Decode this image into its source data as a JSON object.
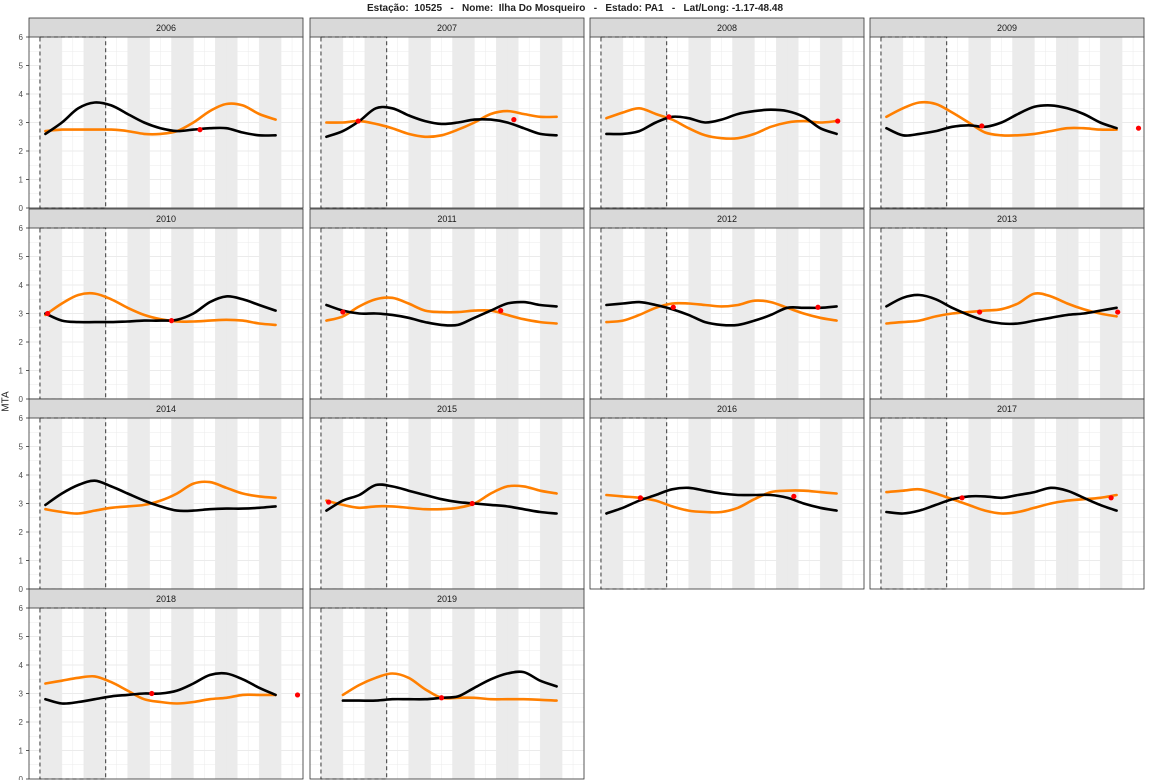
{
  "title": "Estação:  10525   -   Nome:  Ilha Do Mosqueiro   -   Estado: PA1   -   Lat/Long: -1.17-48.48",
  "ylabel": "MTA",
  "colors": {
    "series_a": "#000000",
    "series_b": "#ff7f00",
    "crossing": "#ff0000",
    "strip": "#d9d9d9",
    "shade": "#ebebeb",
    "grid": "#ebebeb"
  },
  "chart_data": {
    "type": "line",
    "ylim": [
      0,
      6
    ],
    "yticks": [
      0,
      1,
      2,
      3,
      4,
      5,
      6
    ],
    "xlim": [
      0,
      12.5
    ],
    "shaded_bands": [
      [
        0.5,
        1.5
      ],
      [
        2.5,
        3.5
      ],
      [
        4.5,
        5.5
      ],
      [
        6.5,
        7.5
      ],
      [
        8.5,
        9.5
      ],
      [
        10.5,
        11.5
      ]
    ],
    "dashed_box": {
      "x": [
        0.5,
        3.5
      ],
      "y": [
        0,
        6
      ]
    },
    "panels": [
      {
        "year": "2006",
        "x_start": 0.75,
        "series_a": [
          2.6,
          3.0,
          3.5,
          3.7,
          3.6,
          3.3,
          3.0,
          2.8,
          2.7,
          2.75,
          2.8,
          2.8,
          2.65,
          2.55,
          2.55
        ],
        "series_b": [
          2.7,
          2.75,
          2.75,
          2.75,
          2.75,
          2.7,
          2.6,
          2.6,
          2.7,
          3.0,
          3.4,
          3.65,
          3.6,
          3.3,
          3.1
        ],
        "crossings": [
          [
            7.8,
            2.75
          ]
        ]
      },
      {
        "year": "2007",
        "x_start": 0.75,
        "series_a": [
          2.5,
          2.7,
          3.05,
          3.5,
          3.5,
          3.25,
          3.05,
          2.95,
          3.0,
          3.1,
          3.1,
          3.0,
          2.8,
          2.6,
          2.55
        ],
        "series_b": [
          3.0,
          3.0,
          3.05,
          2.95,
          2.8,
          2.6,
          2.5,
          2.55,
          2.75,
          3.0,
          3.3,
          3.4,
          3.3,
          3.2,
          3.2
        ],
        "crossings": [
          [
            2.2,
            3.05
          ],
          [
            9.3,
            3.1
          ]
        ]
      },
      {
        "year": "2008",
        "x_start": 0.75,
        "series_a": [
          2.6,
          2.6,
          2.7,
          3.0,
          3.2,
          3.15,
          3.0,
          3.1,
          3.3,
          3.4,
          3.45,
          3.4,
          3.2,
          2.8,
          2.6
        ],
        "series_b": [
          3.15,
          3.35,
          3.5,
          3.3,
          3.1,
          2.8,
          2.55,
          2.45,
          2.45,
          2.6,
          2.85,
          3.0,
          3.05,
          3.0,
          3.05
        ],
        "crossings": [
          [
            3.6,
            3.2
          ],
          [
            11.3,
            3.05
          ]
        ]
      },
      {
        "year": "2009",
        "x_start": 0.75,
        "series_a": [
          2.8,
          2.55,
          2.6,
          2.7,
          2.85,
          2.9,
          2.85,
          3.0,
          3.3,
          3.55,
          3.6,
          3.5,
          3.3,
          3.0,
          2.8
        ],
        "series_b": [
          3.2,
          3.5,
          3.7,
          3.65,
          3.35,
          3.0,
          2.65,
          2.55,
          2.55,
          2.6,
          2.7,
          2.8,
          2.8,
          2.75,
          2.75
        ],
        "crossings": [
          [
            5.1,
            2.88
          ],
          [
            12.25,
            2.8
          ]
        ]
      },
      {
        "year": "2010",
        "x_start": 0.75,
        "series_a": [
          3.0,
          2.75,
          2.7,
          2.7,
          2.7,
          2.72,
          2.75,
          2.75,
          2.78,
          3.0,
          3.4,
          3.6,
          3.5,
          3.3,
          3.1
        ],
        "series_b": [
          2.95,
          3.35,
          3.65,
          3.7,
          3.5,
          3.2,
          2.95,
          2.8,
          2.72,
          2.72,
          2.75,
          2.78,
          2.75,
          2.65,
          2.6
        ],
        "crossings": [
          [
            0.85,
            3.0
          ],
          [
            6.5,
            2.75
          ]
        ]
      },
      {
        "year": "2011",
        "x_start": 0.75,
        "series_a": [
          3.3,
          3.1,
          3.0,
          3.0,
          2.95,
          2.85,
          2.7,
          2.6,
          2.6,
          2.85,
          3.1,
          3.35,
          3.4,
          3.3,
          3.25
        ],
        "series_b": [
          2.75,
          2.9,
          3.25,
          3.5,
          3.55,
          3.35,
          3.1,
          3.05,
          3.05,
          3.1,
          3.1,
          2.95,
          2.8,
          2.7,
          2.65
        ],
        "crossings": [
          [
            1.5,
            3.05
          ],
          [
            8.7,
            3.1
          ]
        ]
      },
      {
        "year": "2012",
        "x_start": 0.75,
        "series_a": [
          3.3,
          3.35,
          3.4,
          3.3,
          3.15,
          2.95,
          2.7,
          2.6,
          2.6,
          2.75,
          2.95,
          3.2,
          3.2,
          3.2,
          3.25
        ],
        "series_b": [
          2.7,
          2.75,
          2.95,
          3.2,
          3.35,
          3.35,
          3.3,
          3.25,
          3.3,
          3.45,
          3.4,
          3.2,
          3.0,
          2.85,
          2.75
        ],
        "crossings": [
          [
            3.8,
            3.22
          ],
          [
            10.4,
            3.22
          ]
        ]
      },
      {
        "year": "2013",
        "x_start": 0.75,
        "series_a": [
          3.25,
          3.55,
          3.65,
          3.5,
          3.2,
          2.95,
          2.75,
          2.65,
          2.65,
          2.75,
          2.85,
          2.95,
          3.0,
          3.1,
          3.2
        ],
        "series_b": [
          2.65,
          2.7,
          2.75,
          2.9,
          3.0,
          3.05,
          3.1,
          3.15,
          3.35,
          3.7,
          3.6,
          3.35,
          3.15,
          3.0,
          2.9
        ],
        "crossings": [
          [
            5.0,
            3.05
          ],
          [
            11.3,
            3.05
          ]
        ]
      },
      {
        "year": "2014",
        "x_start": 0.75,
        "series_a": [
          2.95,
          3.35,
          3.65,
          3.8,
          3.6,
          3.35,
          3.1,
          2.9,
          2.75,
          2.75,
          2.8,
          2.82,
          2.82,
          2.85,
          2.9
        ],
        "series_b": [
          2.8,
          2.7,
          2.65,
          2.75,
          2.85,
          2.9,
          2.95,
          3.1,
          3.35,
          3.7,
          3.75,
          3.55,
          3.35,
          3.25,
          3.2
        ],
        "crossings": []
      },
      {
        "year": "2015",
        "x_start": 0.75,
        "series_a": [
          2.75,
          3.1,
          3.3,
          3.65,
          3.6,
          3.45,
          3.3,
          3.15,
          3.05,
          3.0,
          2.95,
          2.9,
          2.8,
          2.7,
          2.65
        ],
        "series_b": [
          3.1,
          2.95,
          2.85,
          2.9,
          2.9,
          2.85,
          2.8,
          2.8,
          2.85,
          3.0,
          3.35,
          3.6,
          3.6,
          3.45,
          3.35
        ],
        "crossings": [
          [
            0.85,
            3.05
          ],
          [
            7.4,
            3.0
          ]
        ]
      },
      {
        "year": "2016",
        "x_start": 0.75,
        "series_a": [
          2.65,
          2.85,
          3.1,
          3.3,
          3.5,
          3.55,
          3.45,
          3.35,
          3.3,
          3.3,
          3.3,
          3.2,
          3.0,
          2.85,
          2.75
        ],
        "series_b": [
          3.3,
          3.25,
          3.2,
          3.1,
          2.9,
          2.75,
          2.7,
          2.7,
          2.85,
          3.15,
          3.4,
          3.45,
          3.45,
          3.4,
          3.35
        ],
        "crossings": [
          [
            2.3,
            3.2
          ],
          [
            9.3,
            3.25
          ]
        ]
      },
      {
        "year": "2017",
        "x_start": 0.75,
        "series_a": [
          2.7,
          2.65,
          2.75,
          2.95,
          3.15,
          3.25,
          3.25,
          3.2,
          3.3,
          3.4,
          3.55,
          3.45,
          3.2,
          2.95,
          2.75
        ],
        "series_b": [
          3.4,
          3.45,
          3.5,
          3.35,
          3.15,
          2.95,
          2.75,
          2.65,
          2.7,
          2.85,
          3.0,
          3.1,
          3.15,
          3.2,
          3.3
        ],
        "crossings": [
          [
            4.2,
            3.2
          ],
          [
            11.0,
            3.2
          ]
        ]
      },
      {
        "year": "2018",
        "x_start": 0.75,
        "series_a": [
          2.8,
          2.65,
          2.7,
          2.8,
          2.9,
          2.95,
          3.0,
          3.0,
          3.1,
          3.35,
          3.65,
          3.7,
          3.5,
          3.2,
          2.95
        ],
        "series_b": [
          3.35,
          3.45,
          3.55,
          3.6,
          3.4,
          3.1,
          2.8,
          2.7,
          2.65,
          2.7,
          2.8,
          2.85,
          2.95,
          2.95,
          2.95
        ],
        "crossings": [
          [
            5.6,
            3.0
          ],
          [
            12.25,
            2.95
          ]
        ]
      },
      {
        "year": "2019",
        "x_start": 1.5,
        "series_a": [
          2.75,
          2.75,
          2.75,
          2.8,
          2.8,
          2.8,
          2.85,
          2.9,
          3.2,
          3.5,
          3.7,
          3.75,
          3.45,
          3.25
        ],
        "series_b": [
          2.95,
          3.3,
          3.55,
          3.7,
          3.55,
          3.15,
          2.85,
          2.85,
          2.85,
          2.8,
          2.8,
          2.8,
          2.78,
          2.75
        ],
        "crossings": [
          [
            6.0,
            2.85
          ]
        ]
      }
    ]
  }
}
